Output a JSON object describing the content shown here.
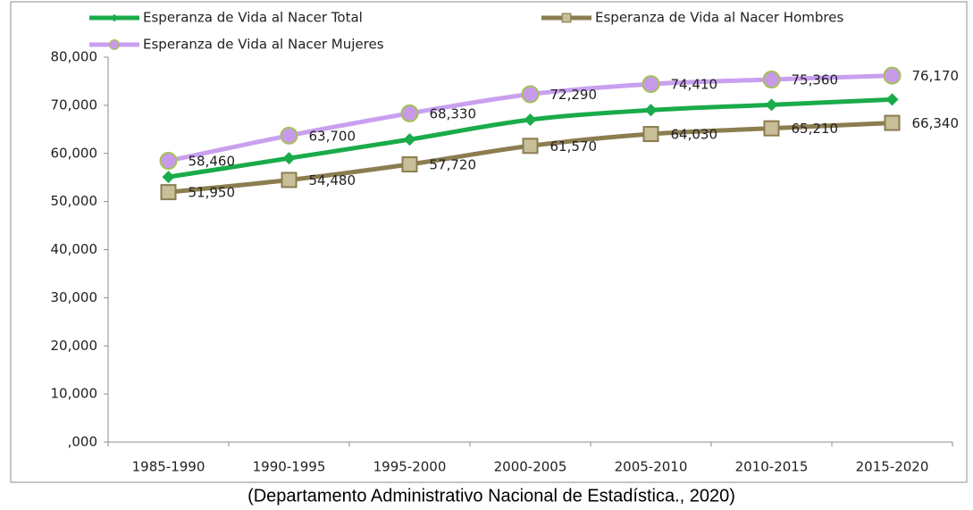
{
  "chart_data": {
    "type": "line",
    "caption": "(Departamento Administrativo Nacional de Estadística., 2020)",
    "categories": [
      "1985-1990",
      "1990-1995",
      "1995-2000",
      "2000-2005",
      "2005-2010",
      "2010-2015",
      "2015-2020"
    ],
    "series": [
      {
        "name": "Esperanza de Vida al Nacer Total",
        "color": "#1aab4a",
        "marker": "diamond",
        "marker_color": "#1aab4a",
        "values": [
          55.1,
          59.0,
          62.9,
          67.0,
          69.0,
          70.1,
          71.2
        ]
      },
      {
        "name": "Esperanza de Vida al Nacer Hombres",
        "color": "#8b7d50",
        "marker": "square",
        "marker_color": "#c8bf98",
        "values": [
          51.95,
          54.48,
          57.72,
          61.57,
          64.03,
          65.21,
          66.34
        ],
        "value_labels": [
          "51,950",
          "54,480",
          "57,720",
          "61,570",
          "64,030",
          "65,210",
          "66,340"
        ]
      },
      {
        "name": "Esperanza de Vida al Nacer Mujeres",
        "color": "#c9a0f0",
        "marker": "circle",
        "marker_color": "#c79ae8",
        "values": [
          58.46,
          63.7,
          68.33,
          72.29,
          74.41,
          75.36,
          76.17
        ],
        "value_labels": [
          "58,460",
          "63,700",
          "68,330",
          "72,290",
          "74,410",
          "75,360",
          "76,170"
        ]
      }
    ],
    "ylim": [
      0,
      80
    ],
    "yticks": [
      {
        "value": 0,
        "label": ",000"
      },
      {
        "value": 10,
        "label": "10,000"
      },
      {
        "value": 20,
        "label": "20,000"
      },
      {
        "value": 30,
        "label": "30,000"
      },
      {
        "value": 40,
        "label": "40,000"
      },
      {
        "value": 50,
        "label": "50,000"
      },
      {
        "value": 60,
        "label": "60,000"
      },
      {
        "value": 70,
        "label": "70,000"
      },
      {
        "value": 80,
        "label": "80,000"
      }
    ],
    "grid": false,
    "legend": "top"
  }
}
